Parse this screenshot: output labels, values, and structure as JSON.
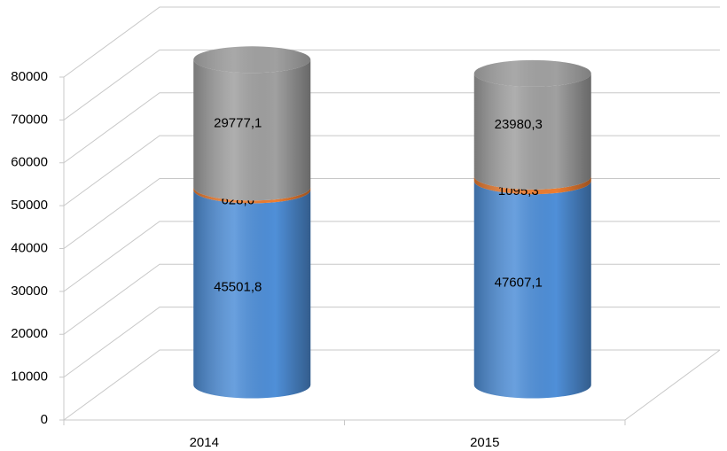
{
  "chart_data": {
    "type": "stacked-cylinder",
    "categories": [
      "2014",
      "2015"
    ],
    "series": [
      {
        "color": "#4f8fd8",
        "values": [
          45501.8,
          47607.1
        ],
        "value_labels": [
          "45501,8",
          "47607,1"
        ]
      },
      {
        "color": "#ed7d31",
        "values": [
          628.6,
          1095.3
        ],
        "value_labels": [
          "628,6",
          "1095,3"
        ]
      },
      {
        "color": "#a0a0a0",
        "values": [
          29777.1,
          23980.3
        ],
        "value_labels": [
          "29777,1",
          "23980,3"
        ]
      }
    ],
    "ylim": [
      0,
      80000
    ],
    "yticks": [
      0,
      10000,
      20000,
      30000,
      40000,
      50000,
      60000,
      70000,
      80000
    ],
    "grid": true
  }
}
